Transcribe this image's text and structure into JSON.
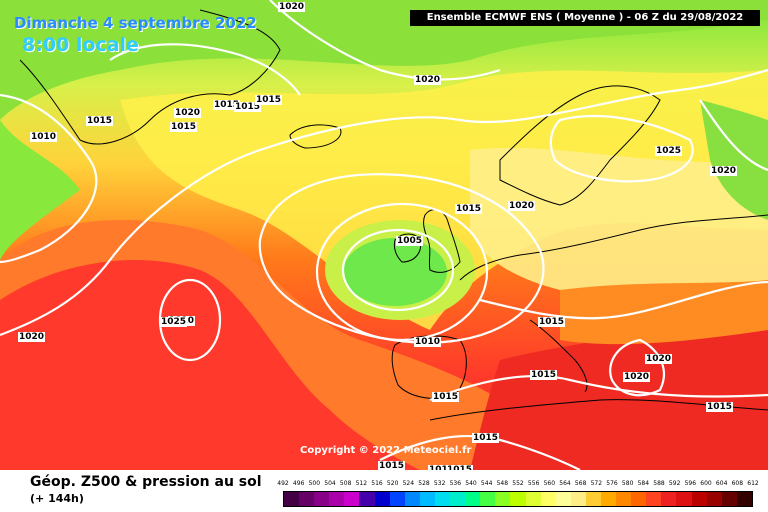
{
  "map": {
    "date_title": "Dimanche 4 septembre 2022",
    "time_title": "8:00 locale",
    "model_banner": "Ensemble ECMWF ENS  ( Moyenne )  -  06 Z du 29/08/2022",
    "copyright": "Copyright © 2022 Meteociel.fr",
    "isobar_labels": [
      "1020",
      "1015",
      "1010",
      "1015",
      "1020",
      "1015",
      "1015",
      "1015",
      "1020",
      "1010",
      "1020",
      "1025",
      "1020",
      "1015",
      "1020",
      "1005",
      "1025",
      "1020",
      "1015",
      "1010",
      "1020",
      "1020",
      "1015",
      "1015",
      "1015",
      "1015",
      "1015",
      "1010",
      "1015"
    ]
  },
  "footer": {
    "title": "Géop. Z500 & pression au sol",
    "subtitle": "(+ 144h)"
  },
  "legend": {
    "ticks": [
      "492",
      "496",
      "500",
      "504",
      "508",
      "512",
      "516",
      "520",
      "524",
      "528",
      "532",
      "536",
      "540",
      "544",
      "548",
      "552",
      "556",
      "560",
      "564",
      "568",
      "572",
      "576",
      "580",
      "584",
      "588",
      "592",
      "596",
      "600",
      "604",
      "608",
      "612"
    ],
    "colors": [
      "#440044",
      "#660066",
      "#880088",
      "#aa00aa",
      "#cc00cc",
      "#4400aa",
      "#0000cc",
      "#0044ff",
      "#0088ff",
      "#00bbff",
      "#00ddee",
      "#00eecc",
      "#00ff88",
      "#44ff44",
      "#88ff22",
      "#bbff00",
      "#ddff33",
      "#ffff66",
      "#ffff99",
      "#ffee88",
      "#ffcc33",
      "#ffaa00",
      "#ff8800",
      "#ff6600",
      "#ff4422",
      "#ee2222",
      "#dd1111",
      "#bb0000",
      "#990000",
      "#660000",
      "#330000"
    ]
  }
}
